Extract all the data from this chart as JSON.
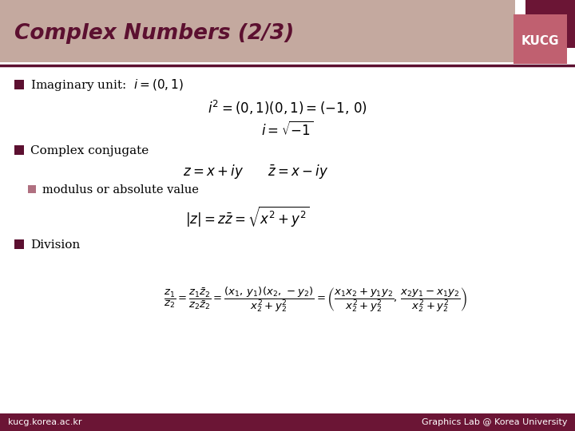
{
  "title": "Complex Numbers (2/3)",
  "title_bg_color": "#C4A99F",
  "title_text_color": "#5C1030",
  "kucg_box_dark": "#6B1535",
  "kucg_box_light": "#C06070",
  "kucg_text": "KUCG",
  "footer_bg_color": "#6B1535",
  "footer_left": "kucg.korea.ac.kr",
  "footer_right": "Graphics Lab @ Korea University",
  "bg_color": "#FFFFFF",
  "bullet_color_1": "#5C1030",
  "bullet_color_2": "#B07080",
  "slide_line_color": "#5C1030"
}
